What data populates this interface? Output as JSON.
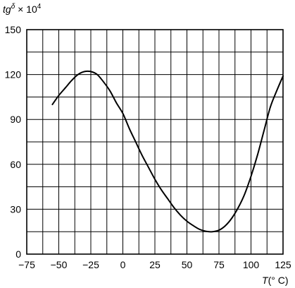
{
  "chart_data": {
    "type": "line",
    "ylabel_base": "tg",
    "ylabel_sup": "δ",
    "ylabel_times": " × 10",
    "ylabel_exp": "4",
    "xlabel_var": "T",
    "xlabel_unit": "(° C)",
    "xlim": [
      -75,
      125
    ],
    "ylim": [
      0,
      150
    ],
    "x_ticks": [
      -75,
      -50,
      -25,
      0,
      25,
      50,
      75,
      100,
      125
    ],
    "x_tick_labels": [
      "−75",
      "−50",
      "−25",
      "0",
      "25",
      "50",
      "75",
      "100",
      "125"
    ],
    "y_ticks": [
      0,
      30,
      60,
      90,
      120,
      150
    ],
    "y_tick_labels": [
      "0",
      "30",
      "60",
      "90",
      "120",
      "150"
    ],
    "grid": true,
    "series": [
      {
        "x": [
          -55,
          -50,
          -45,
          -40,
          -35,
          -30,
          -25,
          -20,
          -15,
          -10,
          -5,
          0,
          5,
          10,
          15,
          20,
          25,
          30,
          35,
          40,
          45,
          50,
          55,
          60,
          65,
          70,
          75,
          80,
          85,
          90,
          95,
          100,
          105,
          110,
          115,
          120,
          125
        ],
        "y": [
          100,
          106,
          111,
          116,
          120,
          122,
          122,
          120,
          115,
          109,
          101,
          94,
          84,
          75,
          66,
          58,
          50,
          43,
          37,
          31,
          26,
          22,
          19,
          16.5,
          15.2,
          15,
          16,
          19,
          24,
          31,
          40,
          52,
          66,
          82,
          98,
          109,
          119
        ]
      }
    ]
  }
}
